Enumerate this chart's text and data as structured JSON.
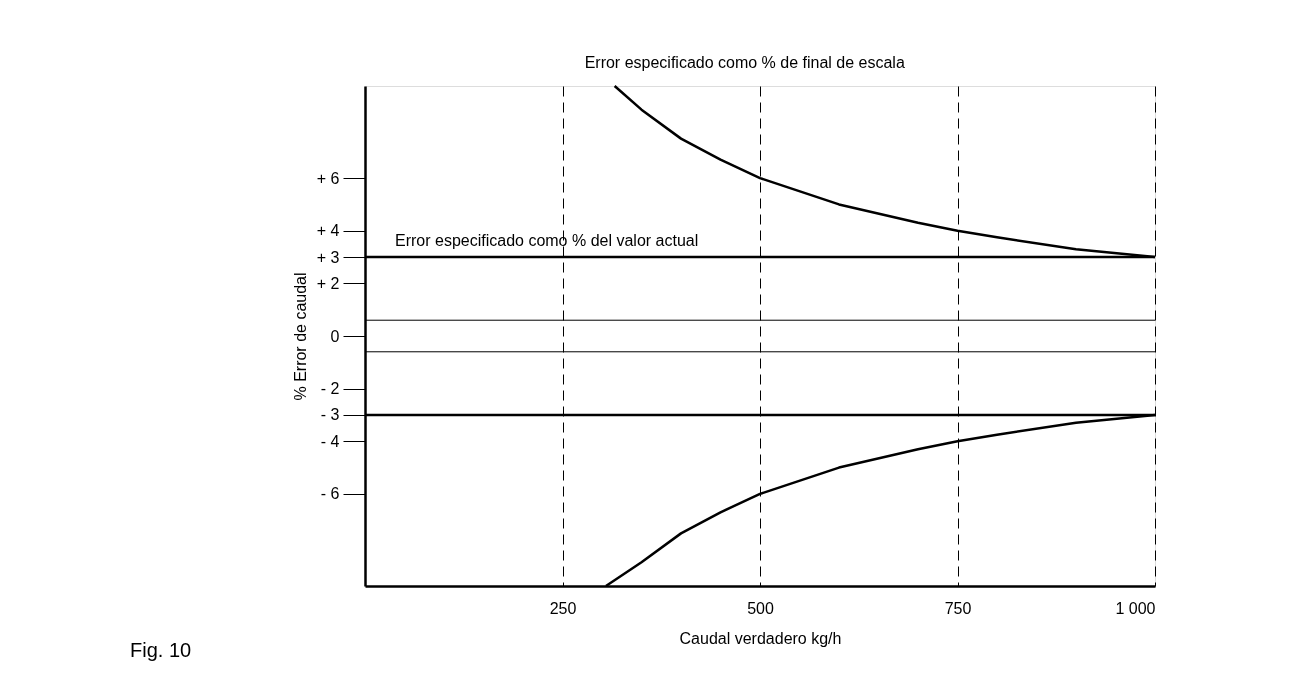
{
  "chart_data": {
    "type": "line",
    "xlabel": "Caudal verdadero kg/h",
    "ylabel": "% Error de caudal",
    "xlim": [
      0,
      1000
    ],
    "ylim": [
      -9.5,
      9.5
    ],
    "xticks": [
      250,
      500,
      750,
      {
        "value": 1000,
        "label": "1 000"
      }
    ],
    "yticks": [
      {
        "value": 6,
        "label": "+ 6"
      },
      {
        "value": 4,
        "label": "+ 4"
      },
      {
        "value": 3,
        "label": "+ 3"
      },
      {
        "value": 2,
        "label": "+ 2"
      },
      0,
      {
        "value": -2,
        "label": "- 2"
      },
      {
        "value": -3,
        "label": "- 3"
      },
      {
        "value": -4,
        "label": "- 4"
      },
      {
        "value": -6,
        "label": "- 6"
      }
    ],
    "grid": "x",
    "line_style": "solid",
    "marker": "none",
    "series": [
      {
        "name": "Error especificado como % de final de escala",
        "color": "#000000",
        "x": [
          316,
          350,
          400,
          450,
          500,
          600,
          700,
          750,
          800,
          900,
          1000
        ],
        "values": [
          9.5,
          8.6,
          7.5,
          6.7,
          6,
          5,
          4.3,
          4,
          3.75,
          3.3,
          3
        ]
      },
      {
        "name": "Error especificado como % del valor actual",
        "color": "#000000",
        "x": [
          0,
          1000
        ],
        "values": [
          3,
          3
        ]
      },
      {
        "color": "#000000",
        "x": [
          0,
          1000
        ],
        "values": [
          -3,
          -3
        ]
      },
      {
        "color": "#000000",
        "x": [
          305,
          350,
          400,
          450,
          500,
          600,
          700,
          750,
          800,
          900,
          1000
        ],
        "values": [
          -9.5,
          -8.6,
          -7.5,
          -6.7,
          -6,
          -5,
          -4.3,
          -4,
          -3.75,
          -3.3,
          -3
        ]
      }
    ],
    "ref_lines": [
      {
        "axis": "y",
        "value": 0.6,
        "color": "#000000"
      },
      {
        "axis": "y",
        "value": -0.6,
        "color": "#000000"
      }
    ],
    "annotations": [
      "Fig. 10"
    ]
  }
}
